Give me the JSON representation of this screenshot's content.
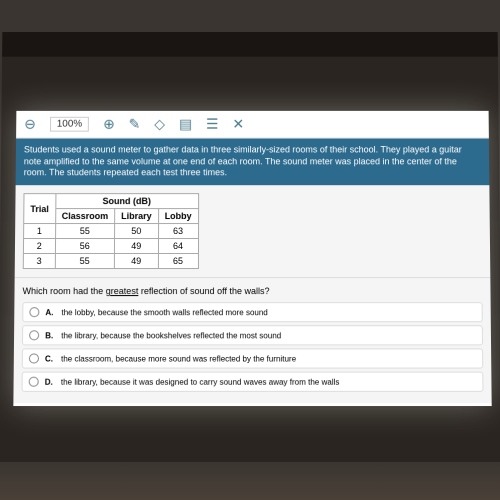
{
  "toolbar": {
    "zoom_out_icon": "⊖",
    "zoom_value": "100%",
    "zoom_in_icon": "⊕",
    "pencil_icon": "✎",
    "eraser_icon": "◇",
    "document_icon": "▤",
    "list_icon": "☰",
    "close_icon": "✕"
  },
  "question": {
    "text": "Students used a sound meter to gather data in three similarly-sized rooms of their school. They played a guitar note amplified to the same volume at one end of each room. The sound meter was placed in the center of the room. The students repeated each test three times.",
    "background_color": "#2d6b8e",
    "text_color": "#ffffff"
  },
  "table": {
    "header_trial": "Trial",
    "header_sound": "Sound (dB)",
    "columns": [
      "Classroom",
      "Library",
      "Lobby"
    ],
    "rows": [
      {
        "trial": "1",
        "values": [
          "55",
          "50",
          "63"
        ]
      },
      {
        "trial": "2",
        "values": [
          "56",
          "49",
          "64"
        ]
      },
      {
        "trial": "3",
        "values": [
          "55",
          "49",
          "65"
        ]
      }
    ]
  },
  "sub_question": {
    "prefix": "Which room had the ",
    "emphasis": "greatest",
    "suffix": " reflection of sound off the walls?"
  },
  "answers": [
    {
      "letter": "A.",
      "text": "the lobby, because the smooth walls reflected more sound"
    },
    {
      "letter": "B.",
      "text": "the library, because the bookshelves reflected the most sound"
    },
    {
      "letter": "C.",
      "text": "the classroom, because more sound was reflected by the furniture"
    },
    {
      "letter": "D.",
      "text": "the library, because it was designed to carry sound waves away from the walls"
    }
  ]
}
